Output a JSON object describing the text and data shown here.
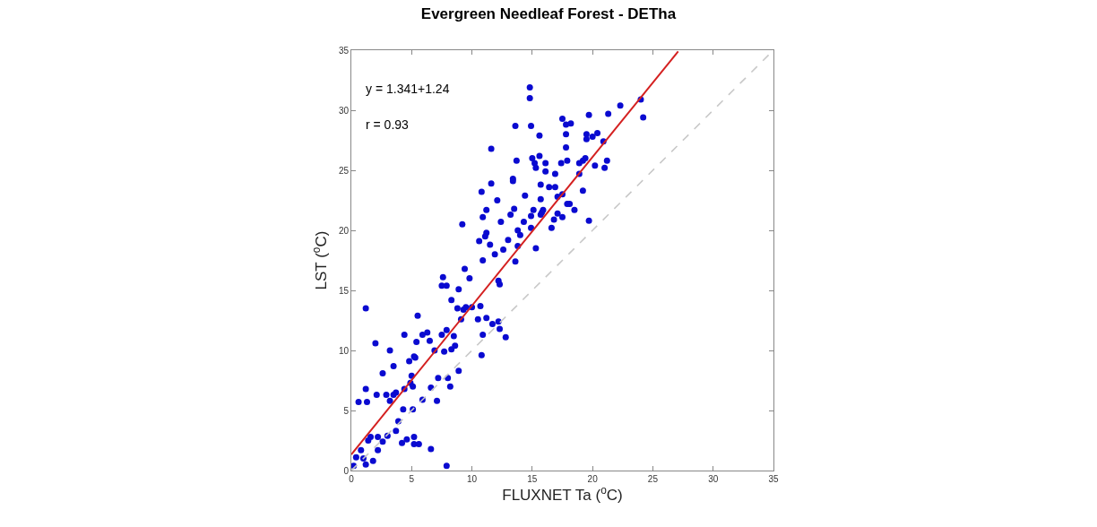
{
  "chart_data": {
    "type": "scatter",
    "title": "Evergreen Needleaf Forest - DETha",
    "xlabel": "FLUXNET Ta ($^{o}$C)",
    "ylabel": "LST ($^{o}$C)",
    "annotations": [
      "y = 1.341+1.24",
      "r = 0.93"
    ],
    "xlim": [
      0,
      35
    ],
    "ylim": [
      0,
      35
    ],
    "xticks": [
      0,
      5,
      10,
      15,
      20,
      25,
      30,
      35
    ],
    "yticks": [
      0,
      5,
      10,
      15,
      20,
      25,
      30,
      35
    ],
    "marker": "circle",
    "series": [
      {
        "color": "#0a0ad0",
        "x": [
          14.8,
          14.8,
          13.6,
          14.9,
          15.6,
          11.6,
          17.5,
          17.8,
          17.8,
          17.8,
          15.0,
          15.2,
          15.6,
          16.1,
          15.3,
          16.1,
          13.7,
          17.4,
          17.9,
          16.9,
          13.4,
          13.4,
          11.6,
          10.8,
          15.7,
          16.4,
          16.9,
          14.4,
          17.5,
          12.1,
          17.9,
          13.5,
          15.1,
          15.7,
          15.9,
          15.8,
          15.7,
          17.1,
          17.1,
          17.5,
          16.8,
          11.2,
          10.9,
          13.2,
          12.4,
          14.3,
          14.9,
          16.6,
          14.9,
          13.8,
          14.0,
          9.2,
          11.2,
          11.1,
          10.6,
          11.5,
          13.0,
          12.6,
          11.9,
          13.8,
          15.3,
          10.9,
          13.6,
          9.4,
          7.6,
          7.5,
          7.9,
          9.8,
          12.2,
          12.3,
          8.9,
          8.3,
          8.8,
          9.5,
          9.3,
          10.0,
          10.7,
          9.1,
          10.5,
          11.2,
          11.7,
          12.2,
          12.3,
          12.8,
          10.9,
          1.2,
          5.5,
          6.3,
          5.9,
          6.5,
          5.4,
          4.4,
          7.5,
          7.9,
          8.5,
          8.6,
          2.0,
          3.2,
          6.9,
          7.7,
          8.3,
          5.2,
          10.8,
          2.6,
          3.5,
          4.8,
          5.3,
          8.9,
          7.2,
          8.0,
          5.0,
          4.9,
          5.1,
          6.6,
          8.2,
          1.2,
          2.1,
          2.9,
          3.2,
          3.7,
          3.5,
          4.4,
          0.6,
          1.3,
          5.9,
          7.1,
          4.3,
          5.1,
          3.9,
          3.7,
          1.6,
          1.4,
          2.2,
          3.0,
          2.6,
          4.2,
          4.6,
          5.2,
          5.2,
          5.6,
          6.6,
          0.8,
          2.2,
          0.4,
          1.0,
          1.8,
          1.2,
          0.2,
          7.9,
          18.2,
          19.7,
          21.3,
          22.3,
          24.0,
          24.2,
          19.5,
          19.5,
          20.0,
          20.4,
          20.9,
          19.4,
          19.2,
          18.9,
          21.2,
          21.0,
          20.2,
          18.9,
          19.2,
          18.5,
          18.1,
          19.7
        ],
        "values": [
          31.9,
          31.0,
          28.7,
          28.7,
          27.9,
          26.8,
          29.3,
          28.8,
          28.0,
          26.9,
          26.0,
          25.6,
          26.2,
          25.6,
          25.2,
          24.9,
          25.8,
          25.6,
          25.8,
          24.7,
          24.3,
          24.1,
          23.9,
          23.2,
          23.8,
          23.6,
          23.6,
          22.9,
          23.0,
          22.5,
          22.2,
          21.8,
          21.7,
          22.6,
          21.7,
          21.5,
          21.3,
          22.8,
          21.4,
          21.1,
          20.9,
          21.7,
          21.1,
          21.3,
          20.7,
          20.7,
          21.2,
          20.2,
          20.2,
          20.0,
          19.6,
          20.5,
          19.8,
          19.5,
          19.1,
          18.8,
          19.2,
          18.4,
          18.0,
          18.7,
          18.5,
          17.5,
          17.4,
          16.8,
          16.1,
          15.4,
          15.4,
          16.0,
          15.8,
          15.5,
          15.1,
          14.2,
          13.5,
          13.6,
          13.4,
          13.6,
          13.7,
          12.6,
          12.6,
          12.7,
          12.2,
          12.4,
          11.8,
          11.1,
          11.3,
          13.5,
          12.9,
          11.5,
          11.3,
          10.8,
          10.7,
          11.3,
          11.3,
          11.7,
          11.2,
          10.4,
          10.6,
          10.0,
          10.0,
          9.9,
          10.1,
          9.5,
          9.6,
          8.1,
          8.7,
          9.1,
          9.4,
          8.3,
          7.7,
          7.7,
          7.9,
          7.3,
          7.0,
          6.9,
          7.0,
          6.8,
          6.3,
          6.3,
          5.8,
          6.5,
          6.3,
          6.8,
          5.7,
          5.7,
          5.9,
          5.8,
          5.1,
          5.1,
          4.1,
          3.3,
          2.8,
          2.5,
          2.8,
          2.9,
          2.4,
          2.3,
          2.6,
          2.8,
          2.2,
          2.2,
          1.8,
          1.7,
          1.7,
          1.1,
          1.0,
          0.8,
          0.5,
          0.4,
          0.4,
          28.9,
          29.6,
          29.7,
          30.4,
          30.9,
          29.4,
          28.0,
          27.6,
          27.8,
          28.1,
          27.4,
          26.0,
          25.8,
          25.6,
          25.8,
          25.2,
          25.4,
          24.7,
          23.3,
          21.7,
          22.2,
          20.8
        ]
      },
      {
        "type": "line",
        "color": "#c8c8c8",
        "x": [
          0,
          35
        ],
        "values": [
          0,
          35
        ],
        "line_style": "dashed",
        "marker": "none"
      },
      {
        "type": "line",
        "color": "#d42020",
        "x": [
          0,
          27.1
        ],
        "values": [
          1.34,
          34.9
        ],
        "line_style": "solid",
        "marker": "none"
      }
    ]
  }
}
